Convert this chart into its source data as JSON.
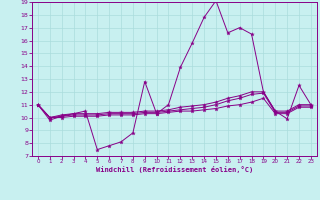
{
  "xlabel": "Windchill (Refroidissement éolien,°C)",
  "bg_color": "#c8f0f0",
  "line_color": "#880088",
  "grid_color": "#aadddd",
  "ylim": [
    7,
    19
  ],
  "xlim": [
    -0.5,
    23.5
  ],
  "yticks": [
    7,
    8,
    9,
    10,
    11,
    12,
    13,
    14,
    15,
    16,
    17,
    18,
    19
  ],
  "xticks": [
    0,
    1,
    2,
    3,
    4,
    5,
    6,
    7,
    8,
    9,
    10,
    11,
    12,
    13,
    14,
    15,
    16,
    17,
    18,
    19,
    20,
    21,
    22,
    23
  ],
  "series": [
    [
      11.0,
      9.8,
      10.1,
      10.3,
      10.5,
      7.5,
      7.8,
      8.1,
      8.8,
      12.8,
      10.3,
      11.0,
      13.9,
      15.8,
      17.8,
      19.1,
      16.6,
      17.0,
      16.5,
      12.0,
      10.5,
      9.9,
      12.5,
      11.0
    ],
    [
      11.0,
      10.0,
      10.2,
      10.3,
      10.3,
      10.3,
      10.4,
      10.4,
      10.4,
      10.5,
      10.5,
      10.6,
      10.8,
      10.9,
      11.0,
      11.2,
      11.5,
      11.7,
      12.0,
      12.0,
      10.5,
      10.5,
      11.0,
      11.0
    ],
    [
      11.0,
      10.0,
      10.1,
      10.2,
      10.2,
      10.2,
      10.3,
      10.3,
      10.3,
      10.4,
      10.4,
      10.5,
      10.6,
      10.7,
      10.8,
      11.0,
      11.3,
      11.5,
      11.8,
      11.9,
      10.4,
      10.4,
      10.9,
      10.9
    ],
    [
      11.0,
      10.0,
      10.0,
      10.1,
      10.1,
      10.1,
      10.2,
      10.2,
      10.2,
      10.3,
      10.3,
      10.4,
      10.5,
      10.5,
      10.6,
      10.7,
      10.9,
      11.0,
      11.2,
      11.5,
      10.3,
      10.3,
      10.8,
      10.8
    ]
  ]
}
